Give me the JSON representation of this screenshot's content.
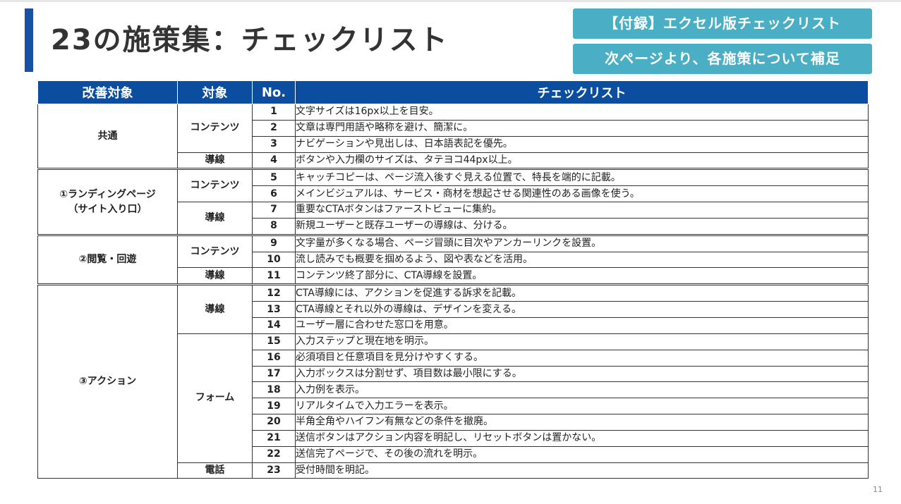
{
  "header": {
    "title": "23の施策集：チェックリスト",
    "label_appendix": "【付録】エクセル版チェックリスト",
    "label_supplement": "次ページより、各施策について補足"
  },
  "table": {
    "columns": [
      "改善対象",
      "対象",
      "No.",
      "チェックリスト"
    ],
    "groups": [
      {
        "area": "共通",
        "subgroups": [
          {
            "target": "コンテンツ",
            "items": [
              {
                "no": "1",
                "text": "文字サイズは16px以上を目安。"
              },
              {
                "no": "2",
                "text": "文章は専門用語や略称を避け、簡潔に。"
              },
              {
                "no": "3",
                "text": "ナビゲーションや見出しは、日本語表記を優先。"
              }
            ]
          },
          {
            "target": "導線",
            "items": [
              {
                "no": "4",
                "text": "ボタンや入力欄のサイズは、タテヨコ44px以上。"
              }
            ]
          }
        ]
      },
      {
        "area_line1": "①ランディングページ",
        "area_line2": "（サイト入り口）",
        "subgroups": [
          {
            "target": "コンテンツ",
            "items": [
              {
                "no": "5",
                "text": "キャッチコピーは、ページ流入後すぐ見える位置で、特長を端的に記載。"
              },
              {
                "no": "6",
                "text": "メインビジュアルは、サービス・商材を想起させる関連性のある画像を使う。"
              }
            ]
          },
          {
            "target": "導線",
            "items": [
              {
                "no": "7",
                "text": "重要なCTAボタンはファーストビューに集約。"
              },
              {
                "no": "8",
                "text": "新規ユーザーと既存ユーザーの導線は、分ける。"
              }
            ]
          }
        ]
      },
      {
        "area": "②閲覧・回遊",
        "subgroups": [
          {
            "target": "コンテンツ",
            "items": [
              {
                "no": "9",
                "text": "文字量が多くなる場合、ページ冒頭に目次やアンカーリンクを設置。"
              },
              {
                "no": "10",
                "text": "流し読みでも概要を掴めるよう、図や表などを活用。"
              }
            ]
          },
          {
            "target": "導線",
            "items": [
              {
                "no": "11",
                "text": "コンテンツ終了部分に、CTA導線を設置。"
              }
            ]
          }
        ]
      },
      {
        "area": "③アクション",
        "subgroups": [
          {
            "target": "導線",
            "items": [
              {
                "no": "12",
                "text": "CTA導線には、アクションを促進する訴求を記載。"
              },
              {
                "no": "13",
                "text": "CTA導線とそれ以外の導線は、デザインを変える。"
              },
              {
                "no": "14",
                "text": "ユーザー層に合わせた窓口を用意。"
              }
            ]
          },
          {
            "target": "フォーム",
            "items": [
              {
                "no": "15",
                "text": "入力ステップと現在地を明示。"
              },
              {
                "no": "16",
                "text": "必須項目と任意項目を見分けやすくする。"
              },
              {
                "no": "17",
                "text": "入力ボックスは分割せず、項目数は最小限にする。"
              },
              {
                "no": "18",
                "text": "入力例を表示。"
              },
              {
                "no": "19",
                "text": "リアルタイムで入力エラーを表示。"
              },
              {
                "no": "20",
                "text": "半角全角やハイフン有無などの条件を撤廃。"
              },
              {
                "no": "21",
                "text": "送信ボタンはアクション内容を明記し、リセットボタンは置かない。"
              },
              {
                "no": "22",
                "text": "送信完了ページで、その後の流れを明示。"
              }
            ]
          },
          {
            "target": "電話",
            "items": [
              {
                "no": "23",
                "text": "受付時間を明記。"
              }
            ]
          }
        ]
      }
    ]
  },
  "footer": {
    "page_number": "11"
  },
  "colors": {
    "title_accent": "#1a50a0",
    "label_bg": "#4aaec5",
    "header_bg": "#0b4ea0"
  }
}
